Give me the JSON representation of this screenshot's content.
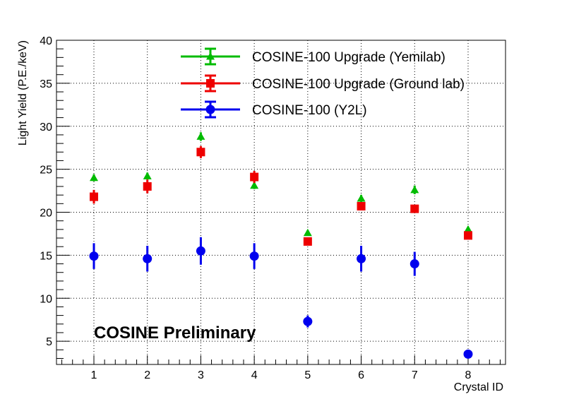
{
  "chart_data": {
    "type": "scatter",
    "title": "",
    "xlabel": "Crystal ID",
    "ylabel": "Light Yield (P.E./keV)",
    "xlim": [
      0.3,
      8.7
    ],
    "ylim": [
      2.3,
      40
    ],
    "xticks": [
      1,
      2,
      3,
      4,
      5,
      6,
      7,
      8
    ],
    "yticks": [
      5,
      10,
      15,
      20,
      25,
      30,
      35,
      40
    ],
    "grid": true,
    "annotation": "COSINE Preliminary",
    "legend_position": "top-right",
    "series": [
      {
        "name": "COSINE-100 Upgrade (Yemilab)",
        "color": "#00bb00",
        "marker": "triangle",
        "x": [
          1,
          2,
          3,
          4,
          5,
          6,
          7,
          8
        ],
        "y": [
          24.0,
          24.2,
          28.8,
          23.1,
          17.6,
          21.6,
          22.6,
          18.0
        ],
        "err": [
          0.4,
          0.4,
          0.5,
          0.4,
          0.3,
          0.4,
          0.5,
          0.3
        ]
      },
      {
        "name": "COSINE-100 Upgrade (Ground lab)",
        "color": "#ee0000",
        "marker": "square",
        "x": [
          1,
          2,
          3,
          4,
          5,
          6,
          7,
          8
        ],
        "y": [
          21.8,
          23.0,
          27.0,
          24.1,
          16.6,
          20.7,
          20.4,
          17.3
        ],
        "err": [
          0.8,
          0.8,
          0.7,
          0.7,
          0.3,
          0.4,
          0.3,
          0.3
        ]
      },
      {
        "name": "COSINE-100 (Y2L)",
        "color": "#0000ee",
        "marker": "circle",
        "x": [
          1,
          2,
          3,
          4,
          5,
          6,
          7,
          8
        ],
        "y": [
          14.9,
          14.6,
          15.5,
          14.9,
          7.3,
          14.6,
          14.0,
          3.5
        ],
        "err": [
          1.5,
          1.5,
          1.6,
          1.5,
          0.7,
          1.5,
          1.4,
          0.3
        ]
      }
    ]
  }
}
